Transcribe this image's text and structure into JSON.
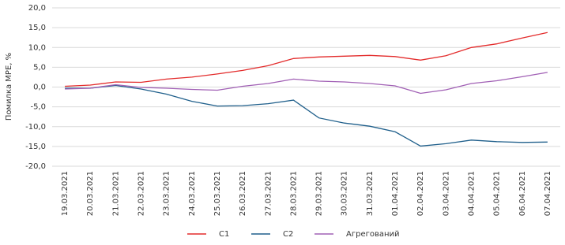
{
  "chart_data": {
    "type": "line",
    "y_label": "Помилка MPE, %",
    "categories": [
      "19.03.2021",
      "20.03.2021",
      "21.03.2021",
      "22.03.2021",
      "23.03.2021",
      "24.03.2021",
      "25.03.2021",
      "26.03.2021",
      "27.03.2021",
      "28.03.2021",
      "29.03.2021",
      "30.03.2021",
      "31.03.2021",
      "01.04.2021",
      "02.04.2021",
      "03.04.2021",
      "04.04.2021",
      "05.04.2021",
      "06.04.2021",
      "07.04.2021"
    ],
    "series": [
      {
        "name": "C1",
        "color": "#e32b2b",
        "values": [
          0.2,
          0.5,
          1.3,
          1.2,
          2.0,
          2.5,
          3.3,
          4.2,
          5.4,
          7.2,
          7.6,
          7.8,
          8.0,
          7.7,
          6.8,
          7.9,
          10.0,
          10.9,
          12.4,
          13.8
        ]
      },
      {
        "name": "C2",
        "color": "#1f5f8b",
        "values": [
          -0.3,
          -0.3,
          0.4,
          -0.5,
          -1.8,
          -3.6,
          -4.8,
          -4.7,
          -4.2,
          -3.3,
          -7.8,
          -9.1,
          -9.9,
          -11.3,
          -14.9,
          -14.3,
          -13.4,
          -13.8,
          -14.0,
          -13.9
        ]
      },
      {
        "name": "Агрегований",
        "color": "#a160b5",
        "values": [
          -0.5,
          -0.3,
          0.6,
          -0.1,
          -0.3,
          -0.6,
          -0.8,
          0.2,
          0.9,
          2.0,
          1.5,
          1.3,
          0.9,
          0.3,
          -1.6,
          -0.7,
          0.9,
          1.6,
          2.6,
          3.7
        ]
      }
    ],
    "ylim": [
      -20,
      20
    ],
    "yticks": [
      {
        "value": -20,
        "label": "-20,0"
      },
      {
        "value": -15,
        "label": "-15,0"
      },
      {
        "value": -10,
        "label": "-10,0"
      },
      {
        "value": -5,
        "label": "-5,0"
      },
      {
        "value": 0,
        "label": "0,0"
      },
      {
        "value": 5,
        "label": "5,0"
      },
      {
        "value": 10,
        "label": "10,0"
      },
      {
        "value": 15,
        "label": "15,0"
      },
      {
        "value": 20,
        "label": "20,0"
      }
    ],
    "grid": true,
    "legend": "bottom"
  }
}
